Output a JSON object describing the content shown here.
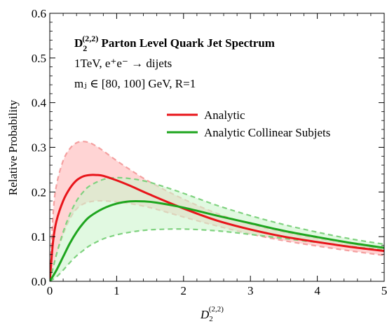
{
  "chart_data": {
    "type": "line",
    "title_main": "D",
    "title_sub": "2",
    "title_sup": "(2,2)",
    "title_rest": " Parton Level Quark Jet Spectrum",
    "annotation_1": "1TeV,  e⁺e⁻ → dijets",
    "annotation_2": "mⱼ ∈ [80, 100] GeV,  R=1",
    "xlabel_main": "D",
    "xlabel_sub": "2",
    "xlabel_sup": "(2,2)",
    "ylabel": "Relative Probability",
    "xlim": [
      0,
      5
    ],
    "ylim": [
      0,
      0.6
    ],
    "xticks": [
      0,
      1,
      2,
      3,
      4,
      5
    ],
    "xtick_labels": [
      "0",
      "1",
      "2",
      "3",
      "4",
      "5"
    ],
    "yticks": [
      0.0,
      0.1,
      0.2,
      0.3,
      0.4,
      0.5,
      0.6
    ],
    "ytick_labels": [
      "0.0",
      "0.1",
      "0.2",
      "0.3",
      "0.4",
      "0.5",
      "0.6"
    ],
    "legend_position": "center-right",
    "series": [
      {
        "name": "Analytic",
        "color": "#e8141a",
        "band_fill": "#ffd2d2",
        "band_edge": "#f4a0a0",
        "x": [
          0,
          0.05,
          0.1,
          0.2,
          0.3,
          0.4,
          0.5,
          0.6,
          0.7,
          0.8,
          1.0,
          1.2,
          1.5,
          2.0,
          2.5,
          3.0,
          3.5,
          4.0,
          4.5,
          5.0
        ],
        "y": [
          0,
          0.09,
          0.135,
          0.18,
          0.208,
          0.226,
          0.235,
          0.238,
          0.238,
          0.236,
          0.226,
          0.214,
          0.194,
          0.163,
          0.136,
          0.116,
          0.1,
          0.088,
          0.077,
          0.068
        ],
        "upper": [
          0,
          0.15,
          0.215,
          0.27,
          0.297,
          0.31,
          0.313,
          0.31,
          0.302,
          0.292,
          0.27,
          0.25,
          0.222,
          0.184,
          0.152,
          0.128,
          0.11,
          0.096,
          0.084,
          0.074
        ],
        "lower": [
          0,
          0.03,
          0.06,
          0.105,
          0.14,
          0.162,
          0.173,
          0.178,
          0.18,
          0.18,
          0.178,
          0.174,
          0.165,
          0.144,
          0.124,
          0.106,
          0.091,
          0.079,
          0.068,
          0.058
        ]
      },
      {
        "name": "Analytic Collinear Subjets",
        "color": "#1ea51e",
        "band_fill": "#cdf5cd",
        "band_edge": "#7fd27f",
        "x": [
          0,
          0.1,
          0.2,
          0.3,
          0.4,
          0.5,
          0.6,
          0.8,
          1.0,
          1.2,
          1.4,
          1.6,
          2.0,
          2.5,
          3.0,
          3.5,
          4.0,
          4.5,
          5.0
        ],
        "y": [
          0,
          0.025,
          0.055,
          0.085,
          0.11,
          0.13,
          0.145,
          0.163,
          0.174,
          0.179,
          0.179,
          0.176,
          0.165,
          0.147,
          0.13,
          0.113,
          0.099,
          0.086,
          0.075
        ],
        "upper": [
          0,
          0.06,
          0.11,
          0.15,
          0.18,
          0.2,
          0.214,
          0.228,
          0.232,
          0.23,
          0.225,
          0.217,
          0.197,
          0.17,
          0.147,
          0.127,
          0.11,
          0.095,
          0.083
        ],
        "lower": [
          0,
          0.01,
          0.025,
          0.042,
          0.057,
          0.069,
          0.08,
          0.095,
          0.104,
          0.11,
          0.114,
          0.116,
          0.117,
          0.113,
          0.105,
          0.096,
          0.087,
          0.078,
          0.07
        ]
      }
    ]
  }
}
